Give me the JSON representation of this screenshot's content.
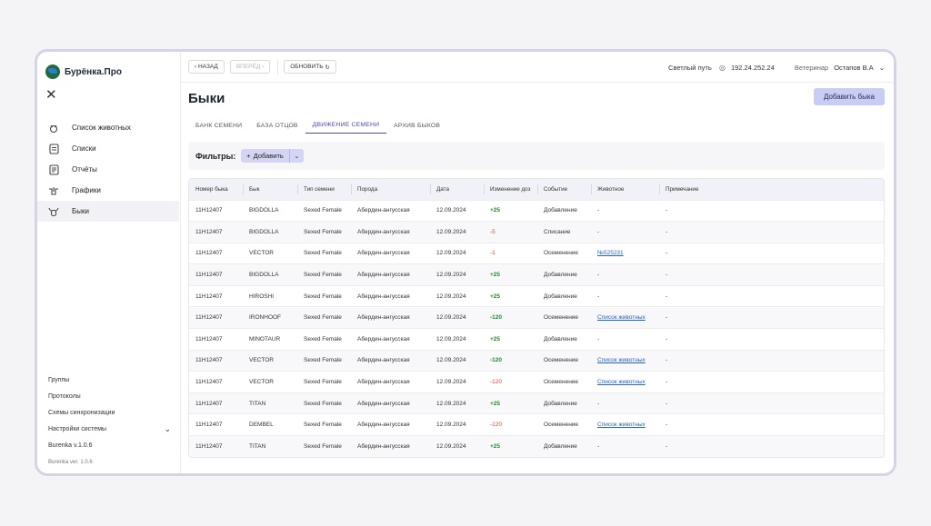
{
  "sidebar": {
    "logo_text": "Бурёнка.Про",
    "close_symbol": "✕",
    "items": [
      {
        "label": "Список животных",
        "icon": "cow-icon"
      },
      {
        "label": "Списки",
        "icon": "list-icon"
      },
      {
        "label": "Отчёты",
        "icon": "report-icon"
      },
      {
        "label": "Графики",
        "icon": "chart-icon"
      },
      {
        "label": "Быки",
        "icon": "bull-icon",
        "active": true
      }
    ],
    "bottom_links": [
      "Группы",
      "Протоколы",
      "Схемы синхронизации",
      "Настройки системы"
    ],
    "version": "Burenka v.1.0.6",
    "version_small": "Burenka ver. 1.0.6"
  },
  "topbar": {
    "back": "НАЗАД",
    "forward": "ВПЕРЁД",
    "refresh": "ОБНОВИТЬ",
    "farm": "Светлый путь",
    "ip": "192.24.252.24",
    "role": "Ветеринар",
    "user": "Остапов В.А"
  },
  "page": {
    "title": "Быки",
    "add_button": "Добавить быка",
    "tabs": [
      "БАНК СЕМЕНИ",
      "БАЗА ОТЦОВ",
      "ДВИЖЕНИЕ СЕМЕНИ",
      "АРХИВ БЫКОВ"
    ],
    "active_tab": 2
  },
  "filters": {
    "label": "Фильтры:",
    "add": "Добавить"
  },
  "table": {
    "headers": [
      "Номер быка",
      "Бык",
      "Тип семени",
      "Порода",
      "Дата",
      "Изменение доз",
      "Событие",
      "Животное",
      "Примечание"
    ],
    "rows": [
      [
        "11H12407",
        "BIGDOLLA",
        "Sexed Female",
        "Абердин-ангусская",
        "12.09.2024",
        "+25",
        "Добавление",
        "-",
        "-"
      ],
      [
        "11H12407",
        "BIGDOLLA",
        "Sexed Female",
        "Абердин-ангусская",
        "12.09.2024",
        "-5",
        "Списание",
        "-",
        "-"
      ],
      [
        "11H12407",
        "VECTOR",
        "Sexed Female",
        "Абердин-ангусская",
        "12.09.2024",
        "-1",
        "Осеменение",
        "№525231",
        "-"
      ],
      [
        "11H12407",
        "BIGDOLLA",
        "Sexed Female",
        "Абердин-ангусская",
        "12.09.2024",
        "+25",
        "Добавление",
        "-",
        "-"
      ],
      [
        "11H12407",
        "HIROSHI",
        "Sexed Female",
        "Абердин-ангусская",
        "12.09.2024",
        "+25",
        "Добавление",
        "-",
        "-"
      ],
      [
        "11H12407",
        "IRONHOOF",
        "Sexed Female",
        "Абердин-ангусская",
        "12.09.2024",
        "-120",
        "Осеменение",
        "Список животных",
        "-"
      ],
      [
        "11H12407",
        "MINOTAUR",
        "Sexed Female",
        "Абердин-ангусская",
        "12.09.2024",
        "+25",
        "Добавление",
        "-",
        "-"
      ],
      [
        "11H12407",
        "VECTOR",
        "Sexed Female",
        "Абердин-ангусская",
        "12.09.2024",
        "-120",
        "Осеменение",
        "Список животных",
        "-"
      ],
      [
        "11H12407",
        "VECTOR",
        "Sexed Female",
        "Абердин-ангусская",
        "12.09.2024",
        "-120",
        "Осеменение",
        "Список животных",
        "-"
      ],
      [
        "11H12407",
        "TITAN",
        "Sexed Female",
        "Абердин-ангусская",
        "12.09.2024",
        "+25",
        "Добавление",
        "-",
        "-"
      ],
      [
        "11H12407",
        "DEMBEL",
        "Sexed Female",
        "Абердин-ангусская",
        "12.09.2024",
        "-120",
        "Осеменение",
        "Список животных",
        "-"
      ],
      [
        "11H12407",
        "TITAN",
        "Sexed Female",
        "Абердин-ангусская",
        "12.09.2024",
        "+25",
        "Добавление",
        "-",
        "-"
      ]
    ],
    "change_colors": {
      "positive": "#1e8a2c",
      "negative_small": "#e0452f",
      "negative_large": "#1e8a2c"
    },
    "change_style": [
      "pos",
      "neg",
      "neg",
      "pos",
      "pos",
      "pos",
      "pos",
      "pos",
      "neg",
      "pos",
      "neg",
      "pos"
    ]
  }
}
